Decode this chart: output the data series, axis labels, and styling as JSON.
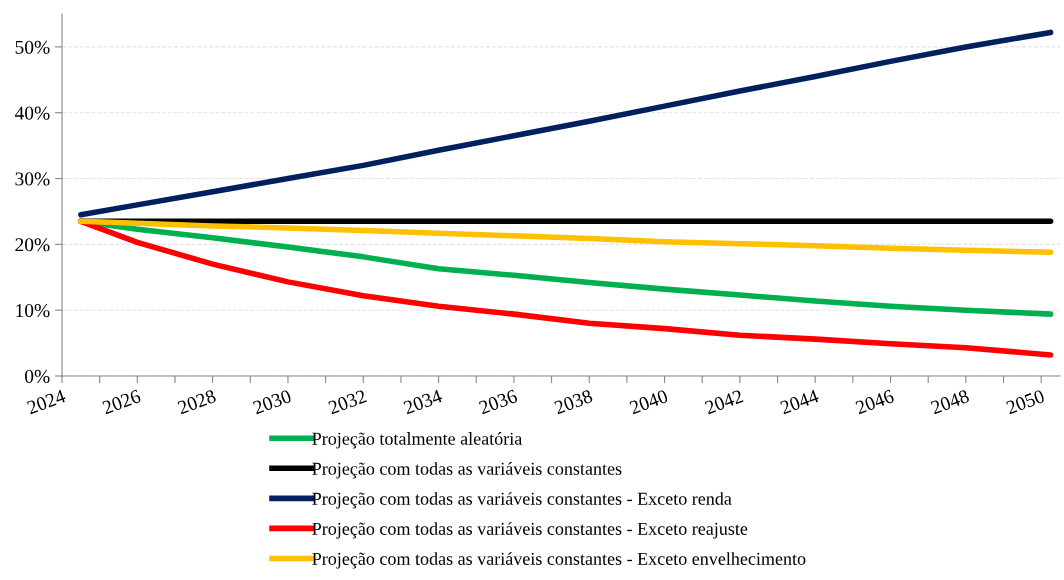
{
  "chart_data": {
    "type": "line",
    "x": [
      2024.5,
      2026,
      2028,
      2030,
      2032,
      2034,
      2036,
      2038,
      2040,
      2042,
      2044,
      2046,
      2048,
      2050.25
    ],
    "series": [
      {
        "name": "Projeção totalmente aleatória",
        "color": "#00b050",
        "values": [
          23.5,
          22.3,
          21.0,
          19.6,
          18.1,
          16.3,
          15.3,
          14.2,
          13.2,
          12.3,
          11.4,
          10.6,
          10.0,
          9.4
        ]
      },
      {
        "name": "Projeção com todas as variáveis constantes",
        "color": "#000000",
        "values": [
          23.5,
          23.5,
          23.5,
          23.5,
          23.5,
          23.5,
          23.5,
          23.5,
          23.5,
          23.5,
          23.5,
          23.5,
          23.5,
          23.5
        ]
      },
      {
        "name": "Projeção com todas as variáveis constantes - Exceto renda",
        "color": "#002060",
        "values": [
          24.5,
          26.0,
          28.0,
          30.0,
          32.0,
          34.3,
          36.5,
          38.7,
          41.0,
          43.3,
          45.5,
          47.8,
          50.0,
          52.2
        ]
      },
      {
        "name": "Projeção com todas as variáveis constantes - Exceto reajuste",
        "color": "#ff0000",
        "values": [
          23.5,
          20.3,
          17.0,
          14.3,
          12.2,
          10.6,
          9.4,
          8.0,
          7.2,
          6.2,
          5.6,
          4.9,
          4.3,
          3.2
        ]
      },
      {
        "name": "Projeção com todas as variáveis constantes - Exceto envelhecimento",
        "color": "#ffc000",
        "values": [
          23.5,
          23.2,
          22.8,
          22.5,
          22.1,
          21.7,
          21.3,
          20.9,
          20.4,
          20.1,
          19.8,
          19.4,
          19.1,
          18.8
        ]
      }
    ],
    "xlim": [
      2024,
      2050.5
    ],
    "xticks": [
      2024,
      {
        "value": 2025,
        "label": null
      },
      2026,
      {
        "value": 2027,
        "label": null
      },
      2028,
      {
        "value": 2029,
        "label": null
      },
      2030,
      {
        "value": 2031,
        "label": null
      },
      2032,
      {
        "value": 2033,
        "label": null
      },
      2034,
      {
        "value": 2035,
        "label": null
      },
      2036,
      {
        "value": 2037,
        "label": null
      },
      2038,
      {
        "value": 2039,
        "label": null
      },
      2040,
      {
        "value": 2041,
        "label": null
      },
      2042,
      {
        "value": 2043,
        "label": null
      },
      2044,
      {
        "value": 2045,
        "label": null
      },
      2046,
      {
        "value": 2047,
        "label": null
      },
      2048,
      {
        "value": 2049,
        "label": null
      },
      2050
    ],
    "ylim": [
      0,
      55
    ],
    "yticks": [
      {
        "value": 0,
        "label": "0%"
      },
      {
        "value": 10,
        "label": "10%"
      },
      {
        "value": 20,
        "label": "20%"
      },
      {
        "value": 30,
        "label": "30%"
      },
      {
        "value": 40,
        "label": "40%"
      },
      {
        "value": 50,
        "label": "50%"
      }
    ],
    "grid": "y",
    "legend": "bottom",
    "marker": "none",
    "line_style": "solid"
  }
}
